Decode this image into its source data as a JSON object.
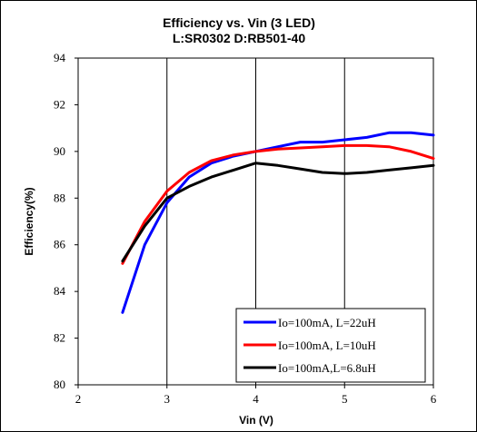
{
  "chart_data": {
    "type": "line",
    "title": "Efficiency vs. Vin (3 LED)",
    "subtitle": "L:SR0302 D:RB501-40",
    "xlabel": "Vin (V)",
    "ylabel": "Efficiency(%)",
    "xlim": [
      2,
      6
    ],
    "ylim": [
      80,
      94
    ],
    "xticks": [
      2,
      3,
      4,
      5,
      6
    ],
    "yticks": [
      80,
      82,
      84,
      86,
      88,
      90,
      92,
      94
    ],
    "grid": "vertical",
    "legend_position": "bottom-right",
    "series": [
      {
        "name": "Io=100mA, L=22uH",
        "color": "#0000ff",
        "x": [
          2.5,
          2.75,
          3.0,
          3.25,
          3.5,
          3.75,
          4.0,
          4.25,
          4.5,
          4.75,
          5.0,
          5.25,
          5.5,
          5.75,
          6.0
        ],
        "y": [
          83.1,
          86.0,
          87.8,
          88.9,
          89.5,
          89.8,
          90.0,
          90.2,
          90.4,
          90.4,
          90.5,
          90.6,
          90.8,
          90.8,
          90.7
        ]
      },
      {
        "name": "Io=100mA, L=10uH",
        "color": "#ff0000",
        "x": [
          2.5,
          2.75,
          3.0,
          3.25,
          3.5,
          3.75,
          4.0,
          4.25,
          4.5,
          4.75,
          5.0,
          5.25,
          5.5,
          5.75,
          6.0
        ],
        "y": [
          85.2,
          87.0,
          88.3,
          89.1,
          89.6,
          89.85,
          90.0,
          90.1,
          90.15,
          90.2,
          90.25,
          90.25,
          90.2,
          90.0,
          89.7
        ]
      },
      {
        "name": "Io=100mA,L=6.8uH",
        "color": "#000000",
        "x": [
          2.5,
          2.75,
          3.0,
          3.25,
          3.5,
          3.75,
          4.0,
          4.25,
          4.5,
          4.75,
          5.0,
          5.25,
          5.5,
          5.75,
          6.0
        ],
        "y": [
          85.3,
          86.8,
          88.0,
          88.5,
          88.9,
          89.2,
          89.5,
          89.4,
          89.25,
          89.1,
          89.05,
          89.1,
          89.2,
          89.3,
          89.4
        ]
      }
    ]
  }
}
